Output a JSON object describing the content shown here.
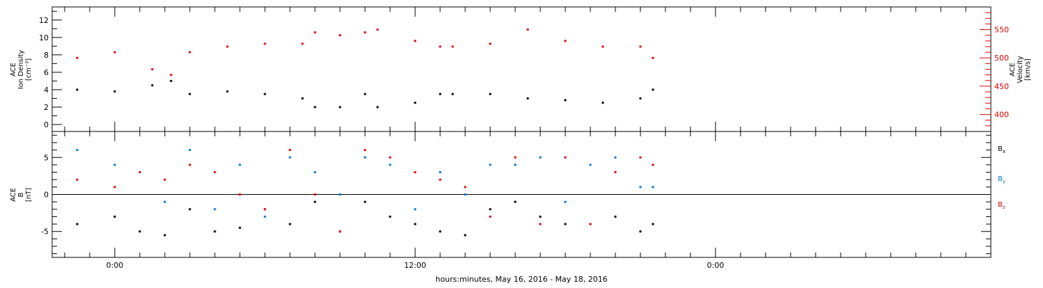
{
  "chart_data": [
    {
      "type": "scatter",
      "panel": "top",
      "ylabel_left": [
        "ACE",
        "Ion Density",
        "[cm⁻³]"
      ],
      "ylabel_right": [
        "ACE",
        "Velocity",
        "[km/s]"
      ],
      "ylim_left": [
        -0.8,
        13.5
      ],
      "ylim_right": [
        370,
        590
      ],
      "left_ticks": [
        0,
        2,
        4,
        6,
        8,
        10,
        12
      ],
      "right_ticks": [
        400,
        450,
        500,
        550
      ],
      "series": [
        {
          "axis": "left",
          "color": "#000000",
          "x": [
            -1.5,
            0,
            1.5,
            2.25,
            3,
            4.5,
            6,
            7.5,
            8,
            9,
            10,
            10.5,
            12,
            13,
            13.5,
            15,
            16.5,
            18,
            19.5,
            21,
            21.5
          ],
          "y": [
            4.0,
            3.8,
            4.5,
            5.0,
            3.5,
            3.8,
            3.5,
            3.0,
            2.0,
            2.0,
            3.5,
            2.0,
            2.5,
            3.5,
            3.5,
            3.5,
            3.0,
            2.8,
            2.5,
            3.0,
            4.0
          ]
        },
        {
          "axis": "right",
          "color": "#e00000",
          "x": [
            -1.5,
            0,
            1.5,
            2.25,
            3,
            4.5,
            6,
            7.5,
            8,
            9,
            10,
            10.5,
            12,
            13,
            13.5,
            15,
            16.5,
            18,
            19.5,
            21,
            21.5
          ],
          "y": [
            500,
            510,
            480,
            470,
            510,
            520,
            525,
            525,
            545,
            540,
            545,
            550,
            530,
            520,
            520,
            525,
            550,
            530,
            520,
            520,
            500
          ]
        }
      ]
    },
    {
      "type": "scatter",
      "panel": "bottom",
      "ylabel": [
        "ACE",
        "B",
        "[nT]"
      ],
      "ylim": [
        -8.5,
        8.5
      ],
      "ticks": [
        -5,
        0,
        5
      ],
      "x_ticks": [
        "0:00",
        "12:00",
        "0:00"
      ],
      "xlabel": "hours:minutes, May 16, 2016 - May 18, 2016",
      "series": [
        {
          "name": "B",
          "sub": "x",
          "color": "#000000",
          "x": [
            -1.5,
            0,
            1,
            2,
            3,
            4,
            5,
            6,
            7,
            8,
            9,
            10,
            11,
            12,
            13,
            14,
            15,
            16,
            17,
            18,
            19,
            20,
            21,
            21.5
          ],
          "y": [
            -4,
            -3,
            -5,
            -5.5,
            -2,
            -5,
            -4.5,
            -2,
            -4,
            -1,
            -5,
            -1,
            -3,
            -4,
            -5,
            -5.5,
            -2,
            -1,
            -3,
            -4,
            -4,
            -3,
            -5,
            -4
          ]
        },
        {
          "name": "B",
          "sub": "y",
          "color": "#0077cc",
          "x": [
            -1.5,
            0,
            1,
            2,
            3,
            4,
            5,
            6,
            7,
            8,
            9,
            10,
            11,
            12,
            13,
            14,
            15,
            16,
            17,
            18,
            19,
            20,
            21,
            21.5
          ],
          "y": [
            6,
            4,
            3,
            -1,
            6,
            -2,
            4,
            -3,
            5,
            3,
            0,
            5,
            4,
            -2,
            3,
            0,
            4,
            4,
            5,
            -1,
            4,
            5,
            1,
            1
          ]
        },
        {
          "name": "B",
          "sub": "z",
          "color": "#e00000",
          "x": [
            -1.5,
            0,
            1,
            2,
            3,
            4,
            5,
            6,
            7,
            8,
            9,
            10,
            11,
            12,
            13,
            14,
            15,
            16,
            17,
            18,
            19,
            20,
            21,
            21.5
          ],
          "y": [
            2,
            1,
            3,
            2,
            4,
            3,
            0,
            -2,
            6,
            0,
            -5,
            6,
            5,
            3,
            2,
            1,
            -3,
            5,
            -4,
            5,
            -4,
            3,
            5,
            4
          ]
        }
      ]
    }
  ]
}
